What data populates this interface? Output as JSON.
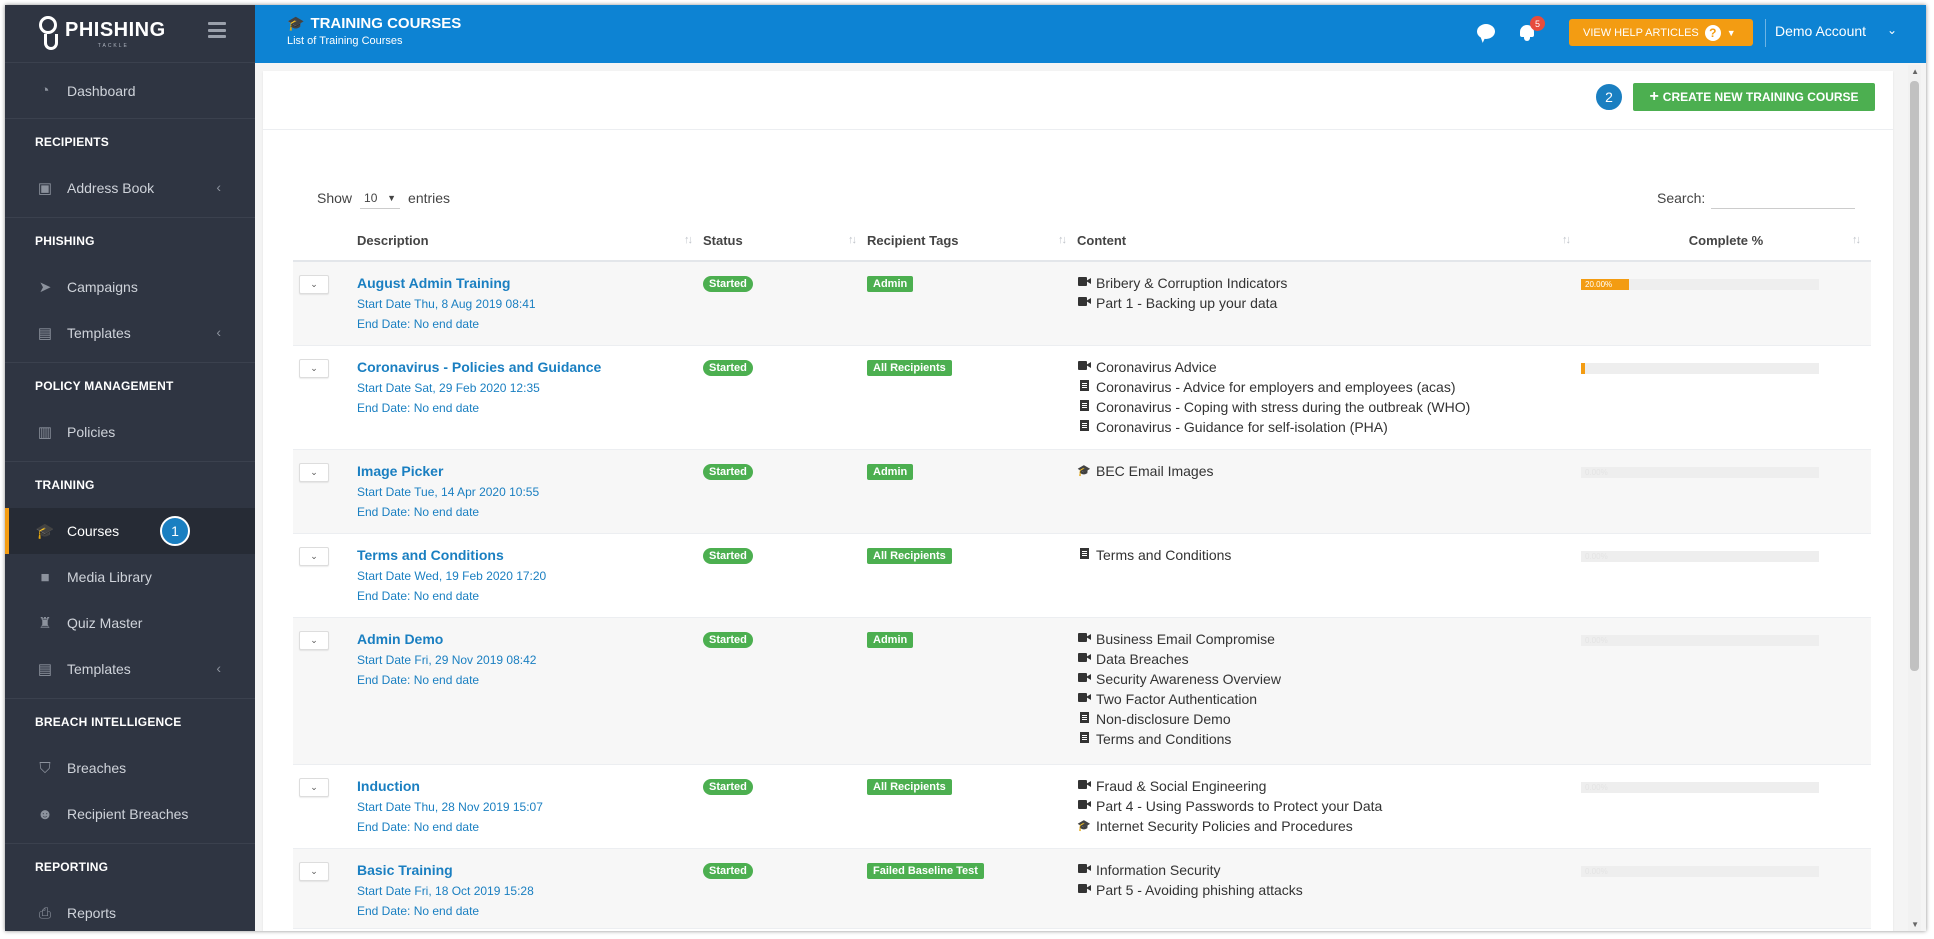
{
  "logo": {
    "text": "PHISHING",
    "sub": "TACKLE"
  },
  "sidebar": {
    "dashboard": "Dashboard",
    "sections": {
      "recipients": "RECIPIENTS",
      "phishing": "PHISHING",
      "policy": "POLICY MANAGEMENT",
      "training": "TRAINING",
      "breach": "BREACH INTELLIGENCE",
      "reporting": "REPORTING"
    },
    "address_book": "Address Book",
    "campaigns": "Campaigns",
    "templates": "Templates",
    "policies": "Policies",
    "courses": "Courses",
    "courses_step": "1",
    "media_library": "Media Library",
    "quiz_master": "Quiz Master",
    "training_templates": "Templates",
    "breaches": "Breaches",
    "recipient_breaches": "Recipient Breaches",
    "reports": "Reports"
  },
  "header": {
    "title": "TRAINING COURSES",
    "subtitle": "List of Training Courses",
    "notifications": "5",
    "help": "VIEW HELP ARTICLES",
    "account": "Demo Account"
  },
  "panel": {
    "step": "2",
    "create": "CREATE NEW TRAINING COURSE",
    "show": "Show",
    "entries_value": "10",
    "entries": "entries",
    "search": "Search:"
  },
  "table": {
    "columns": [
      "Description",
      "Status",
      "Recipient Tags",
      "Content",
      "Complete %"
    ],
    "rows": [
      {
        "title": "August Admin Training",
        "start": "Start Date Thu, 8 Aug 2019 08:41",
        "end": "End Date: No end date",
        "status": "Started",
        "tag": "Admin",
        "content": [
          {
            "type": "video",
            "text": "Bribery & Corruption Indicators"
          },
          {
            "type": "video",
            "text": "Part 1 - Backing up your data"
          }
        ],
        "complete": 20,
        "complete_label": "20.00%"
      },
      {
        "title": "Coronavirus - Policies and Guidance",
        "start": "Start Date Sat, 29 Feb 2020 12:35",
        "end": "End Date: No end date",
        "status": "Started",
        "tag": "All Recipients",
        "content": [
          {
            "type": "video",
            "text": "Coronavirus Advice"
          },
          {
            "type": "doc",
            "text": "Coronavirus - Advice for employers and employees (acas)"
          },
          {
            "type": "doc",
            "text": "Coronavirus - Coping with stress during the outbreak (WHO)"
          },
          {
            "type": "doc",
            "text": "Coronavirus - Guidance for self-isolation (PHA)"
          }
        ],
        "complete": 1.5,
        "complete_label": "1.52%"
      },
      {
        "title": "Image Picker",
        "start": "Start Date Tue, 14 Apr 2020 10:55",
        "end": "End Date: No end date",
        "status": "Started",
        "tag": "Admin",
        "content": [
          {
            "type": "course",
            "text": "BEC Email Images"
          }
        ],
        "complete": 0,
        "complete_label": "0.00%"
      },
      {
        "title": "Terms and Conditions",
        "start": "Start Date Wed, 19 Feb 2020 17:20",
        "end": "End Date: No end date",
        "status": "Started",
        "tag": "All Recipients",
        "content": [
          {
            "type": "doc",
            "text": "Terms and Conditions"
          }
        ],
        "complete": 0,
        "complete_label": "0.00%"
      },
      {
        "title": "Admin Demo",
        "start": "Start Date Fri, 29 Nov 2019 08:42",
        "end": "End Date: No end date",
        "status": "Started",
        "tag": "Admin",
        "content": [
          {
            "type": "video",
            "text": "Business Email Compromise"
          },
          {
            "type": "video",
            "text": "Data Breaches"
          },
          {
            "type": "video",
            "text": "Security Awareness Overview"
          },
          {
            "type": "video",
            "text": "Two Factor Authentication"
          },
          {
            "type": "doc",
            "text": "Non-disclosure Demo"
          },
          {
            "type": "doc",
            "text": "Terms and Conditions"
          }
        ],
        "complete": 0,
        "complete_label": "0.00%"
      },
      {
        "title": "Induction",
        "start": "Start Date Thu, 28 Nov 2019 15:07",
        "end": "End Date: No end date",
        "status": "Started",
        "tag": "All Recipients",
        "content": [
          {
            "type": "video",
            "text": "Fraud & Social Engineering"
          },
          {
            "type": "video",
            "text": "Part 4 - Using Passwords to Protect your Data"
          },
          {
            "type": "course",
            "text": "Internet Security Policies and Procedures"
          }
        ],
        "complete": 0,
        "complete_label": "0.00%"
      },
      {
        "title": "Basic Training",
        "start": "Start Date Fri, 18 Oct 2019 15:28",
        "end": "End Date: No end date",
        "status": "Started",
        "tag": "Failed Baseline Test",
        "content": [
          {
            "type": "video",
            "text": "Information Security"
          },
          {
            "type": "video",
            "text": "Part 5 - Avoiding phishing attacks"
          }
        ],
        "complete": 0,
        "complete_label": "0.00%"
      }
    ]
  },
  "colors": {
    "sidebar": "#2f3542",
    "topbar": "#0d83d3",
    "accent": "#f39c12",
    "success": "#4caf50",
    "link": "#1a7fc1"
  }
}
